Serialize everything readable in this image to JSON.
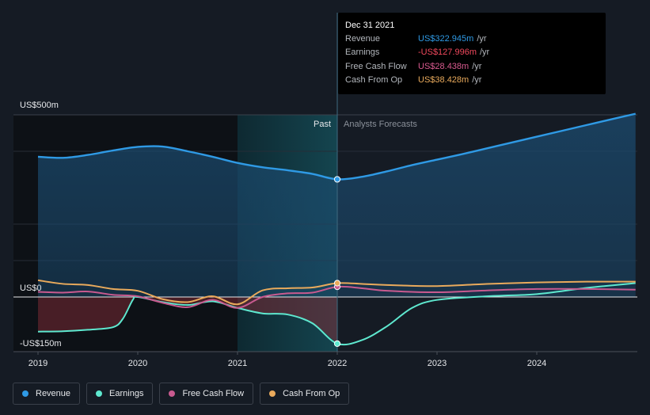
{
  "tooltip": {
    "date": "Dec 31 2021",
    "rows": [
      {
        "label": "Revenue",
        "value": "US$322.945m",
        "unit": "/yr",
        "color": "#2f9ae5"
      },
      {
        "label": "Earnings",
        "value": "-US$127.996m",
        "unit": "/yr",
        "color": "#f0485c"
      },
      {
        "label": "Free Cash Flow",
        "value": "US$28.438m",
        "unit": "/yr",
        "color": "#d95a8f"
      },
      {
        "label": "Cash From Op",
        "value": "US$38.428m",
        "unit": "/yr",
        "color": "#e9aa5c"
      }
    ]
  },
  "legend": [
    {
      "label": "Revenue",
      "color": "#2f9ae5"
    },
    {
      "label": "Earnings",
      "color": "#5ee8cf"
    },
    {
      "label": "Free Cash Flow",
      "color": "#c85a8f"
    },
    {
      "label": "Cash From Op",
      "color": "#e9aa5c"
    }
  ],
  "chart_data": {
    "type": "line",
    "y_tick_labels": [
      "US$500m",
      "US$0",
      "-US$150m"
    ],
    "x_tick_labels": [
      "2019",
      "2020",
      "2021",
      "2022",
      "2023",
      "2024"
    ],
    "ylim": [
      -150,
      500
    ],
    "xlim": [
      2019.0,
      2024.99
    ],
    "past_label": "Past",
    "forecast_label": "Analysts Forecasts",
    "divider_x": 2022.0,
    "highlight_range": [
      2021.0,
      2022.0
    ],
    "series": [
      {
        "name": "Revenue",
        "color": "#2f9ae5",
        "x": [
          2019.0,
          2019.25,
          2019.5,
          2019.75,
          2020.0,
          2020.25,
          2020.5,
          2020.75,
          2021.0,
          2021.25,
          2021.5,
          2021.75,
          2022.0,
          2022.25,
          2022.5,
          2022.75,
          2023.0,
          2023.25,
          2023.5,
          2023.75,
          2024.0,
          2024.25,
          2024.5,
          2024.75,
          2024.99
        ],
        "y": [
          385,
          382,
          390,
          402,
          412,
          413,
          400,
          385,
          368,
          356,
          348,
          338,
          323,
          330,
          345,
          362,
          377,
          392,
          408,
          424,
          440,
          456,
          472,
          488,
          503
        ]
      },
      {
        "name": "Earnings",
        "color": "#5ee8cf",
        "x": [
          2019.0,
          2019.25,
          2019.5,
          2019.75,
          2019.85,
          2019.95,
          2020.0,
          2020.25,
          2020.5,
          2020.75,
          2021.0,
          2021.25,
          2021.5,
          2021.75,
          2022.0,
          2022.25,
          2022.5,
          2022.75,
          2023.0,
          2023.5,
          2024.0,
          2024.5,
          2024.99
        ],
        "y": [
          -95,
          -94,
          -90,
          -83,
          -60,
          -8,
          0,
          -14,
          -22,
          -12,
          -30,
          -45,
          -48,
          -72,
          -128,
          -118,
          -80,
          -30,
          -8,
          2,
          8,
          25,
          38
        ]
      },
      {
        "name": "Free Cash Flow",
        "color": "#c85a8f",
        "x": [
          2019.0,
          2019.25,
          2019.5,
          2019.75,
          2020.0,
          2020.25,
          2020.5,
          2020.75,
          2021.0,
          2021.25,
          2021.5,
          2021.75,
          2022.0,
          2022.25,
          2022.5,
          2023.0,
          2023.5,
          2024.0,
          2024.5,
          2024.99
        ],
        "y": [
          14,
          12,
          15,
          6,
          2,
          -16,
          -28,
          -8,
          -30,
          0,
          10,
          12,
          28,
          24,
          17,
          13,
          18,
          22,
          22,
          20
        ]
      },
      {
        "name": "Cash From Op",
        "color": "#e9aa5c",
        "x": [
          2019.0,
          2019.25,
          2019.5,
          2019.75,
          2020.0,
          2020.25,
          2020.5,
          2020.75,
          2021.0,
          2021.25,
          2021.5,
          2021.75,
          2022.0,
          2022.25,
          2022.5,
          2023.0,
          2023.5,
          2024.0,
          2024.5,
          2024.99
        ],
        "y": [
          46,
          36,
          33,
          22,
          17,
          -6,
          -14,
          2,
          -20,
          18,
          24,
          26,
          38,
          36,
          33,
          30,
          36,
          40,
          42,
          42
        ]
      }
    ]
  }
}
